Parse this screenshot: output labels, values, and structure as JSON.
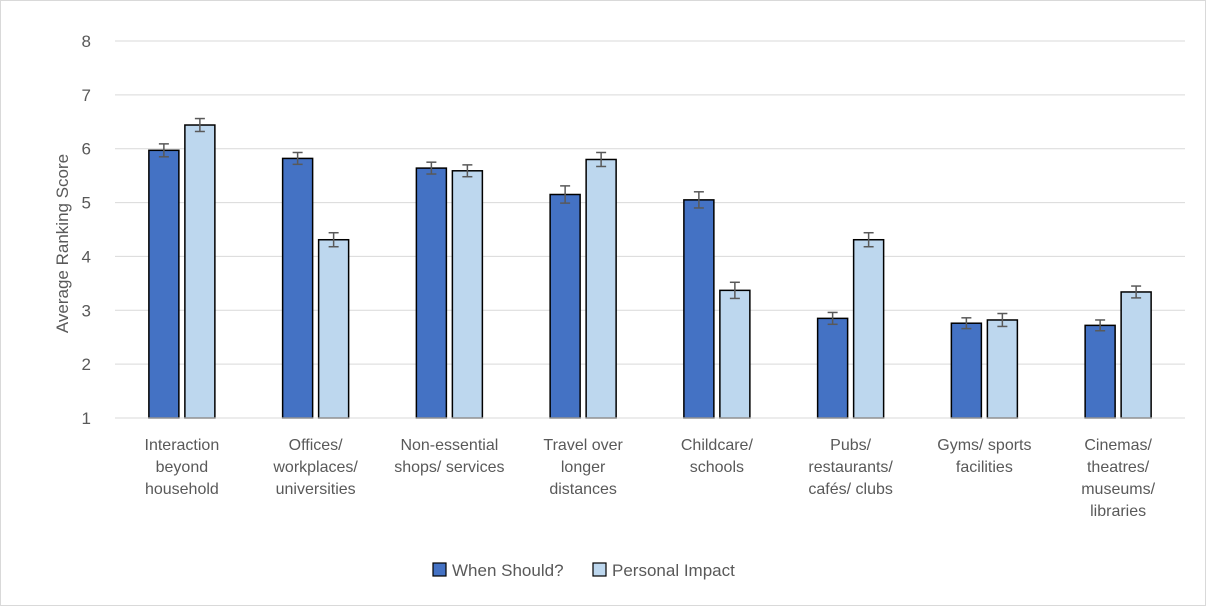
{
  "chart_data": {
    "type": "bar",
    "title": "",
    "xlabel": "",
    "ylabel": "Average Ranking Score",
    "ylim": [
      1,
      8
    ],
    "yticks": [
      1,
      2,
      3,
      4,
      5,
      6,
      7,
      8
    ],
    "grid": true,
    "legend_position": "bottom",
    "categories": [
      [
        "Interaction",
        "beyond",
        "household"
      ],
      [
        "Offices/",
        "workplaces/",
        "universities"
      ],
      [
        "Non-essential",
        "shops/ services"
      ],
      [
        "Travel over",
        "longer",
        "distances"
      ],
      [
        "Childcare/",
        "schools"
      ],
      [
        "Pubs/",
        "restaurants/",
        "cafés/ clubs"
      ],
      [
        "Gyms/ sports",
        "facilities"
      ],
      [
        "Cinemas/",
        "theatres/",
        "museums/",
        "libraries"
      ]
    ],
    "series": [
      {
        "name": "When Should?",
        "color": "#4472c4",
        "values": [
          5.97,
          5.82,
          5.64,
          5.15,
          5.05,
          2.85,
          2.76,
          2.72
        ],
        "errors": [
          0.12,
          0.11,
          0.11,
          0.16,
          0.15,
          0.11,
          0.1,
          0.1
        ]
      },
      {
        "name": "Personal Impact",
        "color": "#bdd7ee",
        "values": [
          6.44,
          4.31,
          5.59,
          5.8,
          3.37,
          4.31,
          2.82,
          3.34
        ],
        "errors": [
          0.12,
          0.13,
          0.11,
          0.13,
          0.15,
          0.13,
          0.12,
          0.11
        ]
      }
    ]
  }
}
